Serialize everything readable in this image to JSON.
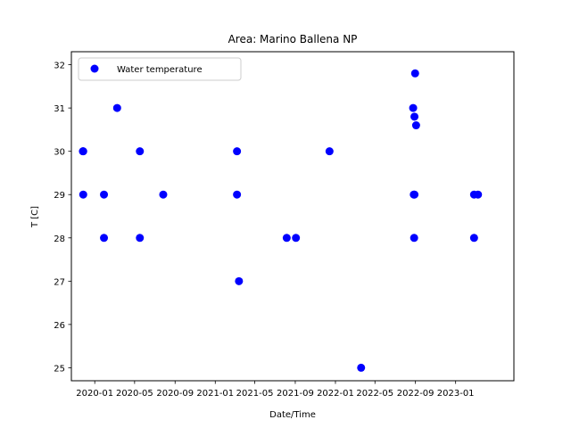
{
  "chart_data": {
    "type": "scatter",
    "title": "Area: Marino Ballena NP",
    "xlabel": "Date/Time",
    "ylabel": "T [C]",
    "x_is_date": true,
    "xlim": [
      "2019-10-22",
      "2023-06-27"
    ],
    "ylim": [
      24.7,
      32.3
    ],
    "x_ticks": [
      {
        "value": "2020-01-01",
        "label": "2020-01"
      },
      {
        "value": "2020-05-01",
        "label": "2020-05"
      },
      {
        "value": "2020-09-01",
        "label": "2020-09"
      },
      {
        "value": "2021-01-01",
        "label": "2021-01"
      },
      {
        "value": "2021-05-01",
        "label": "2021-05"
      },
      {
        "value": "2021-09-01",
        "label": "2021-09"
      },
      {
        "value": "2022-01-01",
        "label": "2022-01"
      },
      {
        "value": "2022-05-01",
        "label": "2022-05"
      },
      {
        "value": "2022-09-01",
        "label": "2022-09"
      },
      {
        "value": "2023-01-01",
        "label": "2023-01"
      }
    ],
    "y_ticks": [
      25,
      26,
      27,
      28,
      29,
      30,
      31,
      32
    ],
    "grid": false,
    "legend": {
      "position": "top-left"
    },
    "series": [
      {
        "name": "Water temperature",
        "color": "#0000ff",
        "marker": "circle",
        "points": [
          {
            "x": "2019-11-26",
            "y": 30
          },
          {
            "x": "2019-11-27",
            "y": 30
          },
          {
            "x": "2019-11-27",
            "y": 29
          },
          {
            "x": "2020-01-29",
            "y": 29
          },
          {
            "x": "2020-01-29",
            "y": 28
          },
          {
            "x": "2020-03-09",
            "y": 31
          },
          {
            "x": "2020-05-17",
            "y": 30
          },
          {
            "x": "2020-05-17",
            "y": 28
          },
          {
            "x": "2020-07-27",
            "y": 29
          },
          {
            "x": "2021-03-08",
            "y": 30
          },
          {
            "x": "2021-03-08",
            "y": 29
          },
          {
            "x": "2021-03-14",
            "y": 27
          },
          {
            "x": "2021-08-06",
            "y": 28
          },
          {
            "x": "2021-09-03",
            "y": 28
          },
          {
            "x": "2021-12-14",
            "y": 30
          },
          {
            "x": "2022-03-20",
            "y": 25
          },
          {
            "x": "2022-08-25",
            "y": 31
          },
          {
            "x": "2022-08-29",
            "y": 30.8
          },
          {
            "x": "2022-08-31",
            "y": 31.8
          },
          {
            "x": "2022-09-03",
            "y": 30.6
          },
          {
            "x": "2022-08-27",
            "y": 29
          },
          {
            "x": "2022-08-29",
            "y": 29
          },
          {
            "x": "2022-08-28",
            "y": 28
          },
          {
            "x": "2023-02-26",
            "y": 29
          },
          {
            "x": "2023-02-26",
            "y": 28
          },
          {
            "x": "2023-03-10",
            "y": 29
          }
        ]
      }
    ]
  }
}
